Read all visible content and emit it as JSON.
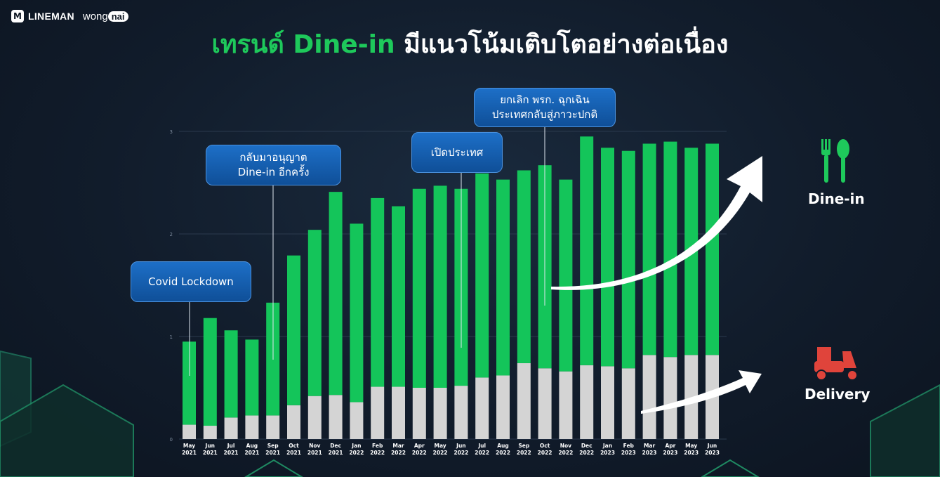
{
  "brand": {
    "lineman": "LINEMAN",
    "wong": "wong",
    "nai": "nai"
  },
  "title": {
    "part1": "เทรนด์ Dine-in",
    "part2": "มีแนวโน้มเติบโตอย่างต่อเนื่อง"
  },
  "annotations": {
    "covid": "Covid Lockdown",
    "reopen_line1": "กลับมาอนุญาต",
    "reopen_line2": "Dine-in อีกครั้ง",
    "open_country": "เปิดประเทศ",
    "emergency_line1": "ยกเลิก พรก. ฉุกเฉิน",
    "emergency_line2": "ประเทศกลับสู่ภาวะปกติ"
  },
  "legend": {
    "dinein": "Dine-in",
    "delivery": "Delivery"
  },
  "colors": {
    "dinein": "#14c55a",
    "delivery": "#d4d4d4",
    "accent": "#1ec95b",
    "callout": "#1561b4"
  },
  "icons": {
    "dinein": "fork-spoon-icon",
    "delivery": "scooter-icon"
  },
  "chart_data": {
    "type": "bar",
    "stacked": true,
    "ylim": [
      0,
      3
    ],
    "yticks": [
      "0",
      "1",
      "2",
      "3"
    ],
    "categories": [
      "May\n2021",
      "Jun\n2021",
      "Jul\n2021",
      "Aug\n2021",
      "Sep\n2021",
      "Oct\n2021",
      "Nov\n2021",
      "Dec\n2021",
      "Jan\n2022",
      "Feb\n2022",
      "Mar\n2022",
      "Apr\n2022",
      "May\n2022",
      "Jun\n2022",
      "Jul\n2022",
      "Aug\n2022",
      "Sep\n2022",
      "Oct\n2022",
      "Nov\n2022",
      "Dec\n2022",
      "Jan\n2023",
      "Feb\n2023",
      "Mar\n2023",
      "Apr\n2023",
      "May\n2023",
      "Jun\n2023"
    ],
    "series": [
      {
        "key": "delivery",
        "values": [
          0.14,
          0.13,
          0.21,
          0.23,
          0.23,
          0.33,
          0.42,
          0.43,
          0.36,
          0.51,
          0.51,
          0.5,
          0.5,
          0.52,
          0.6,
          0.62,
          0.74,
          0.69,
          0.66,
          0.72,
          0.71,
          0.69,
          0.82,
          0.8,
          0.82,
          0.82
        ]
      },
      {
        "key": "dinein",
        "values": [
          0.81,
          1.05,
          0.85,
          0.74,
          1.1,
          1.46,
          1.62,
          1.98,
          1.74,
          1.84,
          1.76,
          1.94,
          1.97,
          1.92,
          1.99,
          1.91,
          1.88,
          1.98,
          1.87,
          2.23,
          2.13,
          2.12,
          2.06,
          2.1,
          2.02,
          2.06
        ]
      }
    ]
  }
}
